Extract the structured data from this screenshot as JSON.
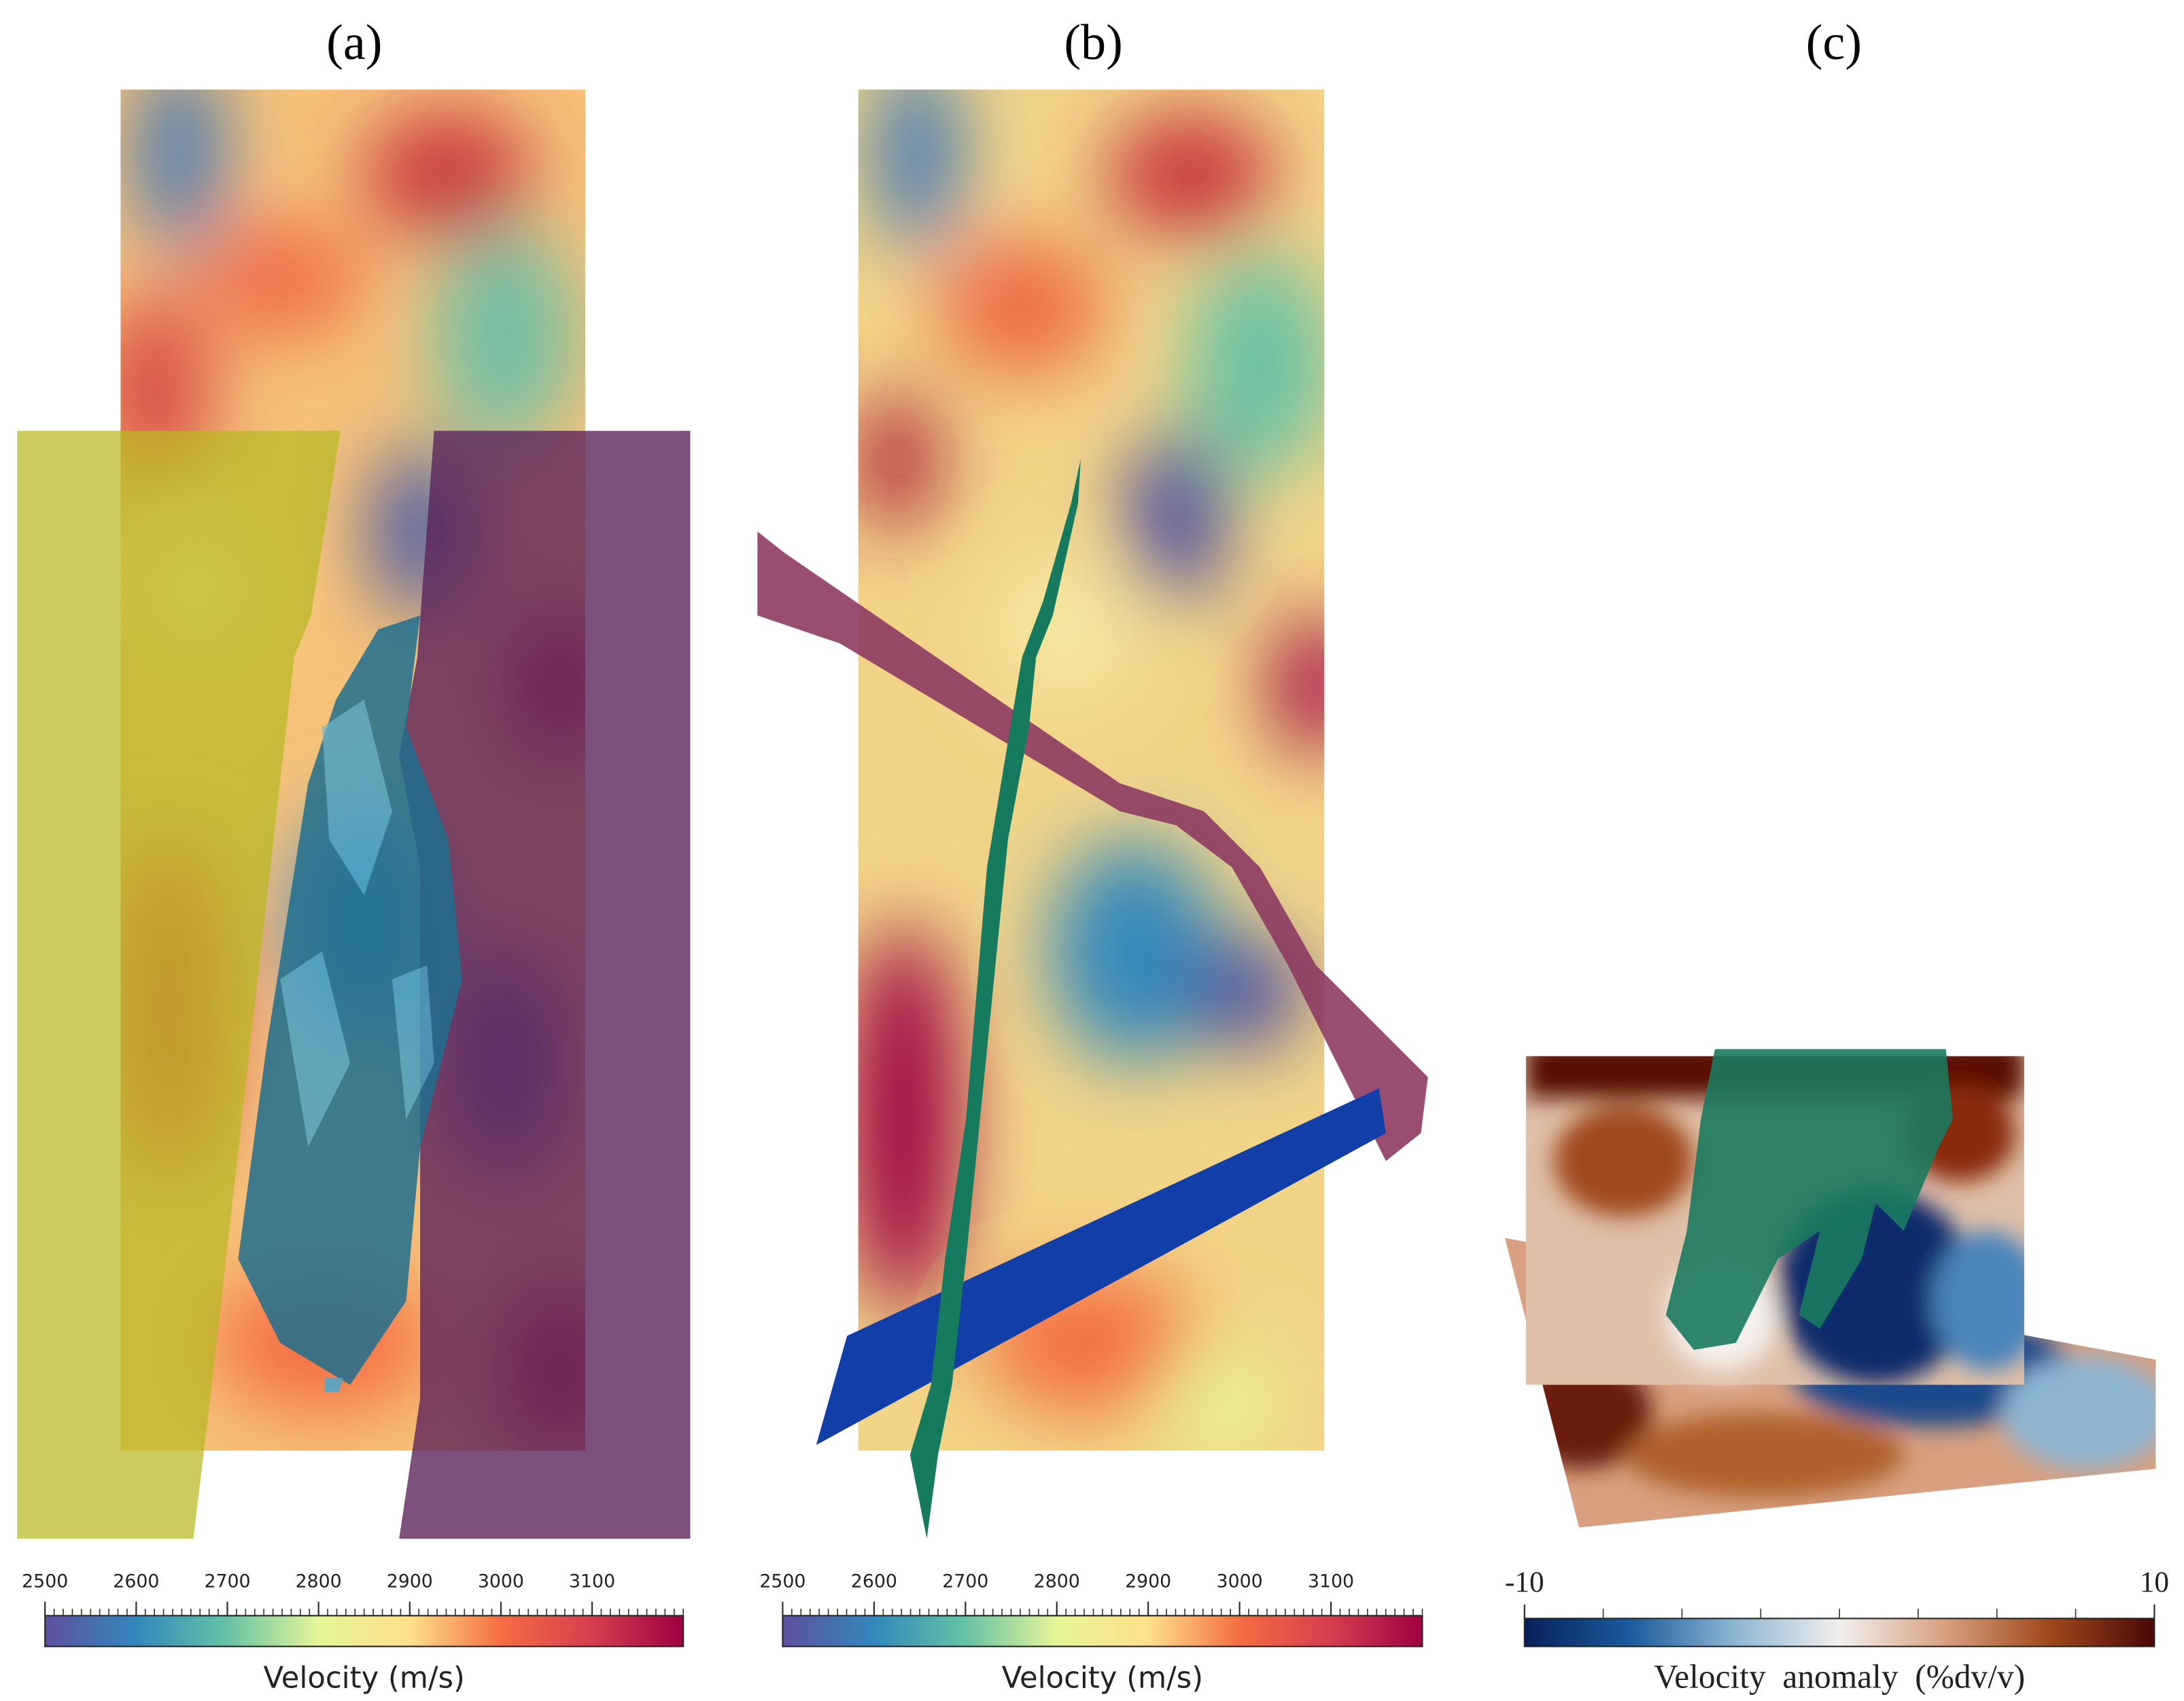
{
  "panels": [
    {
      "label": "(a)",
      "colorbar": {
        "title": "Velocity (m/s)",
        "lim": [
          2500,
          3200
        ],
        "ticks": [
          2500,
          2600,
          2700,
          2800,
          2900,
          3000,
          3100
        ],
        "colors": [
          "#5e4fa2",
          "#3288bd",
          "#66c2a5",
          "#e6f598",
          "#fee08b",
          "#f46d43",
          "#d53e4f",
          "#9e0142"
        ]
      }
    },
    {
      "label": "(b)",
      "colorbar": {
        "title": "Velocity (m/s)",
        "lim": [
          2500,
          3200
        ],
        "ticks": [
          2500,
          2600,
          2700,
          2800,
          2900,
          3000,
          3100
        ],
        "colors": [
          "#5e4fa2",
          "#3288bd",
          "#66c2a5",
          "#e6f598",
          "#fee08b",
          "#f46d43",
          "#d53e4f",
          "#9e0142"
        ]
      }
    },
    {
      "label": "(c)",
      "colorbar": {
        "title": "Velocity anomaly (%dv/v)",
        "lim": [
          -10,
          10
        ],
        "ticks": [
          -10,
          10
        ],
        "colors": [
          "#08205c",
          "#1a5a9c",
          "#8db5d3",
          "#f2f0ee",
          "#d8a080",
          "#a0481c",
          "#4a0808"
        ]
      }
    }
  ]
}
